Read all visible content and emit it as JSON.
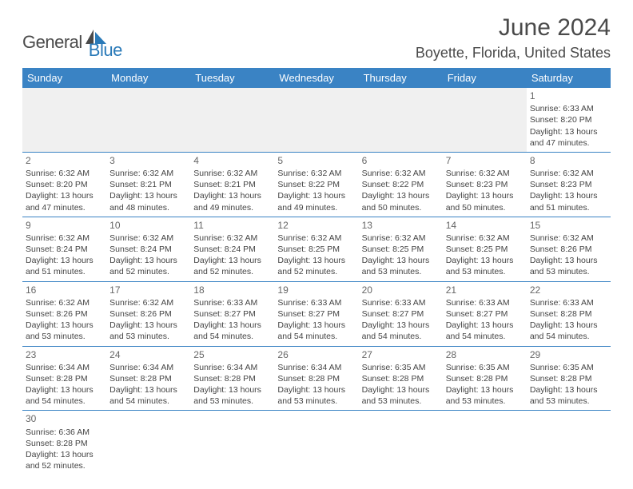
{
  "logo": {
    "text1": "General",
    "text2": "Blue",
    "text1_color": "#4a4a4a",
    "text2_color": "#2a7ab8"
  },
  "title": "June 2024",
  "location": "Boyette, Florida, United States",
  "header_bg": "#3a83c4",
  "border_color": "#3a83c4",
  "days": [
    "Sunday",
    "Monday",
    "Tuesday",
    "Wednesday",
    "Thursday",
    "Friday",
    "Saturday"
  ],
  "cells": {
    "1": {
      "sunrise": "6:33 AM",
      "sunset": "8:20 PM",
      "daylight": "13 hours and 47 minutes."
    },
    "2": {
      "sunrise": "6:32 AM",
      "sunset": "8:20 PM",
      "daylight": "13 hours and 47 minutes."
    },
    "3": {
      "sunrise": "6:32 AM",
      "sunset": "8:21 PM",
      "daylight": "13 hours and 48 minutes."
    },
    "4": {
      "sunrise": "6:32 AM",
      "sunset": "8:21 PM",
      "daylight": "13 hours and 49 minutes."
    },
    "5": {
      "sunrise": "6:32 AM",
      "sunset": "8:22 PM",
      "daylight": "13 hours and 49 minutes."
    },
    "6": {
      "sunrise": "6:32 AM",
      "sunset": "8:22 PM",
      "daylight": "13 hours and 50 minutes."
    },
    "7": {
      "sunrise": "6:32 AM",
      "sunset": "8:23 PM",
      "daylight": "13 hours and 50 minutes."
    },
    "8": {
      "sunrise": "6:32 AM",
      "sunset": "8:23 PM",
      "daylight": "13 hours and 51 minutes."
    },
    "9": {
      "sunrise": "6:32 AM",
      "sunset": "8:24 PM",
      "daylight": "13 hours and 51 minutes."
    },
    "10": {
      "sunrise": "6:32 AM",
      "sunset": "8:24 PM",
      "daylight": "13 hours and 52 minutes."
    },
    "11": {
      "sunrise": "6:32 AM",
      "sunset": "8:24 PM",
      "daylight": "13 hours and 52 minutes."
    },
    "12": {
      "sunrise": "6:32 AM",
      "sunset": "8:25 PM",
      "daylight": "13 hours and 52 minutes."
    },
    "13": {
      "sunrise": "6:32 AM",
      "sunset": "8:25 PM",
      "daylight": "13 hours and 53 minutes."
    },
    "14": {
      "sunrise": "6:32 AM",
      "sunset": "8:25 PM",
      "daylight": "13 hours and 53 minutes."
    },
    "15": {
      "sunrise": "6:32 AM",
      "sunset": "8:26 PM",
      "daylight": "13 hours and 53 minutes."
    },
    "16": {
      "sunrise": "6:32 AM",
      "sunset": "8:26 PM",
      "daylight": "13 hours and 53 minutes."
    },
    "17": {
      "sunrise": "6:32 AM",
      "sunset": "8:26 PM",
      "daylight": "13 hours and 53 minutes."
    },
    "18": {
      "sunrise": "6:33 AM",
      "sunset": "8:27 PM",
      "daylight": "13 hours and 54 minutes."
    },
    "19": {
      "sunrise": "6:33 AM",
      "sunset": "8:27 PM",
      "daylight": "13 hours and 54 minutes."
    },
    "20": {
      "sunrise": "6:33 AM",
      "sunset": "8:27 PM",
      "daylight": "13 hours and 54 minutes."
    },
    "21": {
      "sunrise": "6:33 AM",
      "sunset": "8:27 PM",
      "daylight": "13 hours and 54 minutes."
    },
    "22": {
      "sunrise": "6:33 AM",
      "sunset": "8:28 PM",
      "daylight": "13 hours and 54 minutes."
    },
    "23": {
      "sunrise": "6:34 AM",
      "sunset": "8:28 PM",
      "daylight": "13 hours and 54 minutes."
    },
    "24": {
      "sunrise": "6:34 AM",
      "sunset": "8:28 PM",
      "daylight": "13 hours and 54 minutes."
    },
    "25": {
      "sunrise": "6:34 AM",
      "sunset": "8:28 PM",
      "daylight": "13 hours and 53 minutes."
    },
    "26": {
      "sunrise": "6:34 AM",
      "sunset": "8:28 PM",
      "daylight": "13 hours and 53 minutes."
    },
    "27": {
      "sunrise": "6:35 AM",
      "sunset": "8:28 PM",
      "daylight": "13 hours and 53 minutes."
    },
    "28": {
      "sunrise": "6:35 AM",
      "sunset": "8:28 PM",
      "daylight": "13 hours and 53 minutes."
    },
    "29": {
      "sunrise": "6:35 AM",
      "sunset": "8:28 PM",
      "daylight": "13 hours and 53 minutes."
    },
    "30": {
      "sunrise": "6:36 AM",
      "sunset": "8:28 PM",
      "daylight": "13 hours and 52 minutes."
    }
  },
  "labels": {
    "sunrise": "Sunrise:",
    "sunset": "Sunset:",
    "daylight": "Daylight:"
  },
  "grid": {
    "first_day_column": 6,
    "days_in_month": 30
  }
}
